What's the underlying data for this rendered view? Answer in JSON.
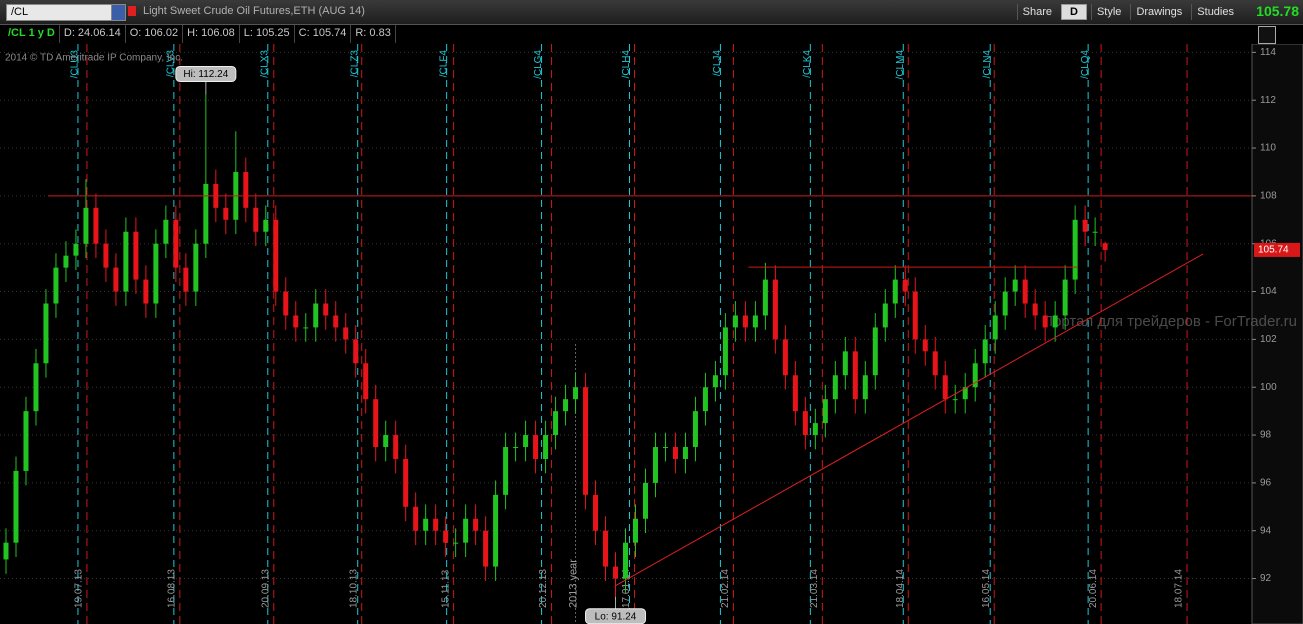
{
  "toolbar": {
    "symbol": "/CL",
    "description": "Light Sweet Crude Oil Futures,ETH (AUG 14)",
    "buttons": [
      "Share",
      "D",
      "Style",
      "Drawings",
      "Studies"
    ],
    "last_price": "105.78"
  },
  "info_bar": [
    "/CL 1 y D",
    "D: 24.06.14",
    "O: 106.02",
    "H: 106.08",
    "L: 105.25",
    "C: 105.74",
    "R: 0.83"
  ],
  "chart_data": {
    "type": "candlestick",
    "copyright": "2014 © TD Ameritrade IP Company, Inc.",
    "watermark": "Портал для трейдеров - ForTrader.ru",
    "up_color": "#21c421",
    "down_color": "#e8141a",
    "grid": true,
    "open": [
      92.8,
      93.5,
      96.5,
      99,
      101,
      103.5,
      105,
      105.5,
      106,
      107.5,
      106,
      105,
      104,
      106.5,
      104.5,
      103.5,
      106,
      107,
      105,
      104,
      106,
      108.5,
      107.5,
      107,
      109,
      107.5,
      106.5,
      107,
      104,
      103,
      102.5,
      102.5,
      103.5,
      103,
      102.5,
      102,
      101,
      99.5,
      97.5,
      98,
      97,
      95,
      94,
      94.5,
      94,
      93.5,
      93.5,
      94.5,
      94,
      92.5,
      95.5,
      97.5,
      97.5,
      98,
      97,
      98,
      99,
      99.5,
      100,
      95.5,
      94,
      92.5,
      92,
      93.5,
      94.5,
      96,
      97.5,
      97.5,
      97,
      97.5,
      99,
      100,
      100.5,
      102.5,
      103,
      102.5,
      103,
      104.5,
      102,
      100.5,
      99,
      98,
      98.5,
      99.5,
      100.5,
      101.5,
      99.5,
      100.5,
      102.5,
      103.5,
      104.5,
      104,
      102,
      101.5,
      100.5,
      99.5,
      99.5,
      100,
      101,
      102,
      103,
      104,
      104.5,
      103.5,
      103,
      102.5,
      103,
      104.5,
      107,
      106.5,
      106.02
    ],
    "high": [
      94.1,
      97.1,
      99.6,
      101.6,
      104.1,
      105.6,
      106.1,
      106.6,
      108.7,
      108.1,
      106.6,
      105.6,
      107.1,
      107.1,
      105.1,
      106.6,
      107.6,
      107.6,
      105.6,
      106.6,
      112.24,
      109.1,
      108.1,
      110.7,
      109.6,
      108.1,
      107.6,
      107.6,
      104.6,
      103.6,
      103.1,
      104.1,
      104.1,
      103.6,
      103.1,
      102.6,
      101.6,
      100.1,
      98.6,
      98.6,
      97.6,
      95.6,
      95.1,
      95.1,
      94.6,
      94.1,
      95.1,
      95.1,
      94.6,
      96.1,
      98.1,
      98.1,
      98.6,
      98.6,
      98.6,
      99.6,
      100.1,
      100.6,
      100.6,
      96.1,
      94.6,
      93.1,
      94.1,
      95.1,
      96.6,
      98.1,
      98.1,
      98.1,
      98.1,
      99.6,
      100.6,
      101.1,
      103.1,
      103.6,
      103.6,
      103.6,
      105.2,
      105.1,
      102.6,
      101.1,
      99.6,
      99.1,
      100.1,
      101.1,
      102.1,
      102.1,
      101.1,
      103.1,
      104.1,
      105.1,
      105.1,
      104.6,
      102.6,
      102.1,
      101.1,
      100.1,
      100.6,
      101.6,
      102.6,
      103.6,
      104.6,
      105.1,
      105.1,
      104.1,
      103.6,
      103.6,
      105.1,
      107.6,
      107.6,
      107.1,
      106.08
    ],
    "low": [
      92.2,
      92.9,
      95.9,
      98.4,
      100.4,
      102.9,
      104.4,
      104.9,
      105.4,
      105.4,
      104.4,
      103.4,
      103.4,
      103.9,
      102.9,
      102.9,
      105.4,
      104.4,
      103.4,
      103.4,
      105.4,
      106.9,
      106.4,
      106.4,
      106.9,
      105.9,
      105.9,
      103.4,
      102.4,
      101.9,
      101.9,
      101.9,
      102.4,
      101.9,
      101.4,
      100.4,
      98.9,
      96.9,
      96.9,
      96.4,
      94.4,
      93.4,
      93.4,
      93.4,
      92.9,
      92.9,
      92.9,
      93.4,
      91.9,
      91.9,
      94.9,
      96.9,
      96.9,
      96.4,
      96.4,
      97.4,
      98.4,
      98.9,
      94.9,
      93.4,
      91.9,
      91.24,
      91.4,
      92.9,
      93.9,
      95.4,
      96.9,
      96.4,
      96.4,
      96.9,
      98.4,
      99.4,
      99.9,
      101.9,
      101.9,
      101.9,
      102.4,
      101.4,
      99.9,
      98.4,
      97.4,
      97.4,
      97.9,
      98.9,
      99.9,
      98.9,
      98.9,
      99.9,
      101.9,
      102.9,
      103.4,
      101.4,
      100.9,
      99.9,
      98.9,
      98.9,
      98.9,
      99.4,
      100.4,
      101.4,
      102.4,
      103.4,
      102.9,
      102.4,
      101.9,
      101.9,
      102.4,
      103.9,
      105.9,
      105.9,
      105.25
    ],
    "close": [
      93.5,
      96.5,
      99,
      101,
      103.5,
      105,
      105.5,
      106,
      107.5,
      106,
      105,
      104,
      106.5,
      104.5,
      103.5,
      106,
      107,
      105,
      104,
      106,
      108.5,
      107.5,
      107,
      109,
      107.5,
      106.5,
      107,
      104,
      103,
      102.5,
      102.5,
      103.5,
      103,
      102.5,
      102,
      101,
      99.5,
      97.5,
      98,
      97,
      95,
      94,
      94.5,
      94,
      93.5,
      93.5,
      94.5,
      94,
      92.5,
      95.5,
      97.5,
      97.5,
      98,
      97,
      98,
      99,
      99.5,
      100,
      95.5,
      94,
      92.5,
      92,
      93.5,
      94.5,
      96,
      97.5,
      97.5,
      97,
      97.5,
      99,
      100,
      100.5,
      102.5,
      103,
      102.5,
      103,
      104.5,
      102,
      100.5,
      99,
      98,
      98.5,
      99.5,
      100.5,
      101.5,
      99.5,
      100.5,
      102.5,
      103.5,
      104.5,
      104,
      102,
      101.5,
      100.5,
      99.5,
      99.5,
      100,
      101,
      102,
      103,
      104,
      104.5,
      103.5,
      103,
      102.5,
      103,
      104.5,
      107,
      106.5,
      106.5,
      105.74
    ],
    "high_label": "Hi: 112.24",
    "low_label": "Lo: 91.24",
    "last_price_label": "105.74",
    "xlim": [
      -0.6,
      124.7
    ],
    "ylim": [
      90.1,
      114.35
    ],
    "yticks": [
      92,
      94,
      96,
      98,
      100,
      102,
      104,
      106,
      108,
      110,
      112,
      114
    ],
    "xticks": [
      {
        "value": 8.1,
        "label": "19.07.13"
      },
      {
        "value": 17.4,
        "label": "16.08.13"
      },
      {
        "value": 26.8,
        "label": "20.09.13"
      },
      {
        "value": 35.6,
        "label": "18.10.13"
      },
      {
        "value": 44.8,
        "label": "15.11.13"
      },
      {
        "value": 54.6,
        "label": "20.12.13"
      },
      {
        "value": 62.9,
        "label": "17.01.14"
      },
      {
        "value": 72.8,
        "label": "21.02.14"
      },
      {
        "value": 81.7,
        "label": "21.03.14"
      },
      {
        "value": 90.3,
        "label": "18.04.14"
      },
      {
        "value": 98.9,
        "label": "16.05.14"
      },
      {
        "value": 109.6,
        "label": "20.06.14"
      },
      {
        "value": 118.2,
        "label": "18.07.14"
      }
    ],
    "year_marker": {
      "value": 57,
      "label": "2013 year"
    },
    "expirations": [
      {
        "value": 7.2,
        "label": "/CLU3"
      },
      {
        "value": 16.8,
        "label": "/CLV3"
      },
      {
        "value": 26.2,
        "label": "/CLX3"
      },
      {
        "value": 35.2,
        "label": "/CLZ3"
      },
      {
        "value": 44.1,
        "label": "/CLF4"
      },
      {
        "value": 53.6,
        "label": "/CLG4"
      },
      {
        "value": 62.4,
        "label": "/CLH4"
      },
      {
        "value": 71.5,
        "label": "/CLJ4"
      },
      {
        "value": 80.5,
        "label": "/CLK4"
      },
      {
        "value": 89.8,
        "label": "/CLM4"
      },
      {
        "value": 98.5,
        "label": "/CLN4"
      },
      {
        "value": 108.3,
        "label": "/CLQ4"
      }
    ],
    "lines": [
      {
        "color": "#d01818",
        "x": [
          4.2,
          124.7
        ],
        "y": [
          108,
          108
        ]
      },
      {
        "color": "#d01818",
        "x": [
          74.3,
          107.2
        ],
        "y": [
          105.02,
          105.02
        ]
      },
      {
        "color": "#e02020",
        "x": [
          61,
          119.8
        ],
        "y": [
          91.7,
          105.57
        ]
      }
    ]
  }
}
